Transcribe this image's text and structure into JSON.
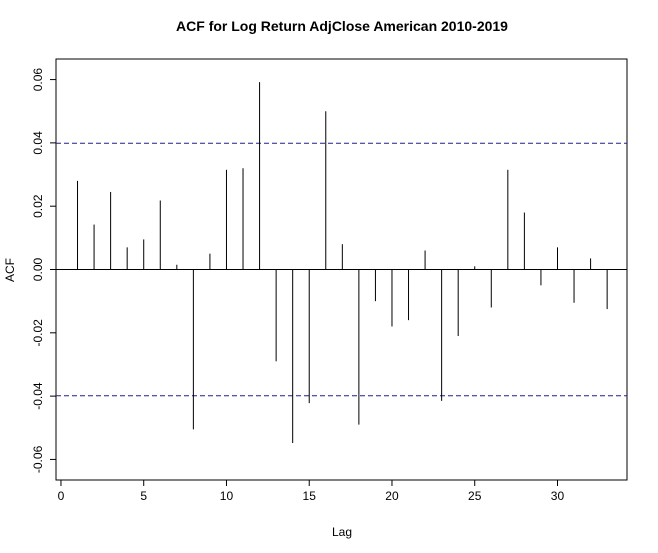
{
  "chart_data": {
    "type": "bar",
    "title": "ACF for Log Return AdjClose American 2010-2019",
    "xlabel": "Lag",
    "ylabel": "ACF",
    "xlim": [
      -0.3,
      34.2
    ],
    "ylim": [
      -0.0665,
      0.0665
    ],
    "x_ticks": [
      0,
      5,
      10,
      15,
      20,
      25,
      30
    ],
    "y_ticks": [
      -0.06,
      -0.04,
      -0.02,
      0.0,
      0.02,
      0.04,
      0.06
    ],
    "x_tick_labels": [
      "0",
      "5",
      "10",
      "15",
      "20",
      "25",
      "30"
    ],
    "y_tick_labels": [
      "-0.06",
      "-0.04",
      "-0.02",
      "0.00",
      "0.02",
      "0.04",
      "0.06"
    ],
    "confidence_band": 0.0399,
    "grid": false,
    "lags": [
      1,
      2,
      3,
      4,
      5,
      6,
      7,
      8,
      9,
      10,
      11,
      12,
      13,
      14,
      15,
      16,
      17,
      18,
      19,
      20,
      21,
      22,
      23,
      24,
      25,
      26,
      27,
      28,
      29,
      30,
      31,
      32,
      33
    ],
    "values": [
      0.028,
      0.0142,
      0.0245,
      0.007,
      0.0095,
      0.0218,
      0.0015,
      -0.0505,
      0.005,
      0.0315,
      0.032,
      0.0592,
      -0.029,
      -0.0548,
      -0.0422,
      0.05,
      0.008,
      -0.049,
      -0.01,
      -0.018,
      -0.016,
      0.006,
      -0.0415,
      -0.021,
      0.001,
      -0.012,
      0.0315,
      0.018,
      -0.005,
      0.007,
      -0.0105,
      0.0035,
      -0.0125
    ]
  }
}
